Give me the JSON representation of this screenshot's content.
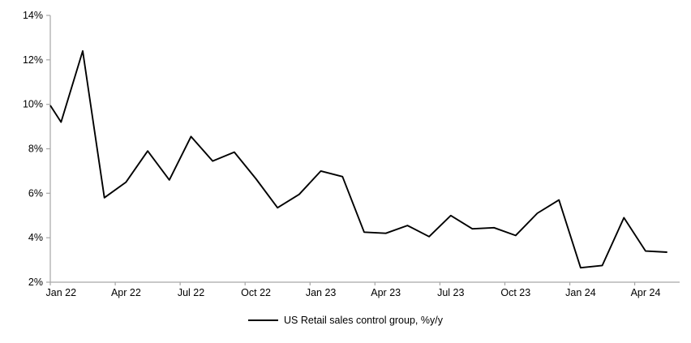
{
  "chart_data": {
    "type": "line",
    "title": "",
    "x": [
      "Jan 22",
      "Feb 22",
      "Mar 22",
      "Apr 22",
      "May 22",
      "Jun 22",
      "Jul 22",
      "Aug 22",
      "Sep 22",
      "Oct 22",
      "Nov 22",
      "Dec 22",
      "Jan 23",
      "Feb 23",
      "Mar 23",
      "Apr 23",
      "May 23",
      "Jun 23",
      "Jul 23",
      "Aug 23",
      "Sep 23",
      "Oct 23",
      "Nov 23",
      "Dec 23",
      "Jan 24",
      "Feb 24",
      "Mar 24",
      "Apr 24",
      "May 24"
    ],
    "series": [
      {
        "name": "US Retail sales control group, %y/y",
        "color": "#000000",
        "values": [
          9.2,
          12.4,
          5.8,
          6.5,
          7.9,
          6.6,
          8.55,
          7.45,
          7.85,
          6.65,
          5.35,
          5.95,
          7.0,
          6.75,
          4.25,
          4.2,
          4.55,
          4.05,
          5.0,
          4.4,
          4.45,
          4.1,
          5.1,
          5.7,
          2.65,
          2.75,
          4.9,
          3.4,
          3.35
        ]
      }
    ],
    "partial_first_segment": {
      "note": "line enters clipped at the left y-axis, one segment before Jan 22",
      "value_at_axis": 9.95
    },
    "ylim": [
      2,
      14
    ],
    "y_ticks": [
      {
        "value": 14,
        "label": "14%"
      },
      {
        "value": 12,
        "label": "12%"
      },
      {
        "value": 10,
        "label": "10%"
      },
      {
        "value": 8,
        "label": "8%"
      },
      {
        "value": 6,
        "label": "6%"
      },
      {
        "value": 4,
        "label": "4%"
      },
      {
        "value": 2,
        "label": "2%"
      }
    ],
    "x_ticks": [
      {
        "i": 0,
        "label": "Jan 22"
      },
      {
        "i": 3,
        "label": "Apr 22"
      },
      {
        "i": 6,
        "label": "Jul 22"
      },
      {
        "i": 9,
        "label": "Oct 22"
      },
      {
        "i": 12,
        "label": "Jan 23"
      },
      {
        "i": 15,
        "label": "Apr 23"
      },
      {
        "i": 18,
        "label": "Jul 23"
      },
      {
        "i": 21,
        "label": "Oct 23"
      },
      {
        "i": 24,
        "label": "Jan 24"
      },
      {
        "i": 27,
        "label": "Apr 24"
      }
    ],
    "grid": false,
    "legend_position": "bottom",
    "axis_color": "#a6a6a6",
    "tick_label_color": "#000000"
  }
}
